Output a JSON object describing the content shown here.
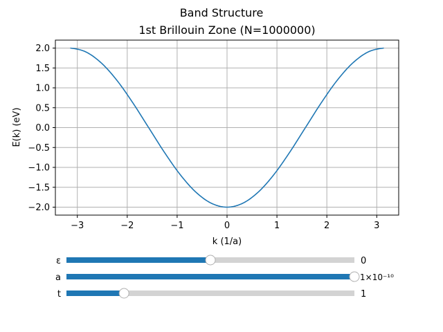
{
  "chart_data": {
    "type": "line",
    "title": "Band Structure",
    "subtitle": "1st Brillouin Zone (N=1000000)",
    "xlabel": "k (1/a)",
    "ylabel": "E(k) (eV)",
    "xlim": [
      -3.44,
      3.44
    ],
    "ylim": [
      -2.2,
      2.2
    ],
    "xticks": [
      -3,
      -2,
      -1,
      0,
      1,
      2,
      3
    ],
    "xtick_labels": [
      "−3",
      "−2",
      "−1",
      "0",
      "1",
      "2",
      "3"
    ],
    "yticks": [
      -2.0,
      -1.5,
      -1.0,
      -0.5,
      0.0,
      0.5,
      1.0,
      1.5,
      2.0
    ],
    "ytick_labels": [
      "−2.0",
      "−1.5",
      "−1.0",
      "−0.5",
      "0.0",
      "0.5",
      "1.0",
      "1.5",
      "2.0"
    ],
    "grid": true,
    "color": "#1f77b4",
    "x": [
      -3.1416,
      -2.8274,
      -2.5133,
      -2.1991,
      -1.885,
      -1.5708,
      -1.2566,
      -0.9425,
      -0.6283,
      -0.3142,
      0.0,
      0.3142,
      0.6283,
      0.9425,
      1.2566,
      1.5708,
      1.885,
      2.1991,
      2.5133,
      2.8274,
      3.1416
    ],
    "y": [
      2.0,
      1.902,
      1.618,
      1.176,
      0.618,
      0.0,
      -0.618,
      -1.176,
      -1.618,
      -1.902,
      -2.0,
      -1.902,
      -1.618,
      -1.176,
      -0.618,
      0.0,
      0.618,
      1.176,
      1.618,
      1.902,
      2.0
    ]
  },
  "sliders": [
    {
      "label": "ε",
      "value": "0",
      "fraction": 0.5
    },
    {
      "label": "a",
      "value": "1×10⁻¹⁰",
      "fraction": 1.0
    },
    {
      "label": "t",
      "value": "1",
      "fraction": 0.2
    }
  ],
  "slider_color": "#1f77b4"
}
